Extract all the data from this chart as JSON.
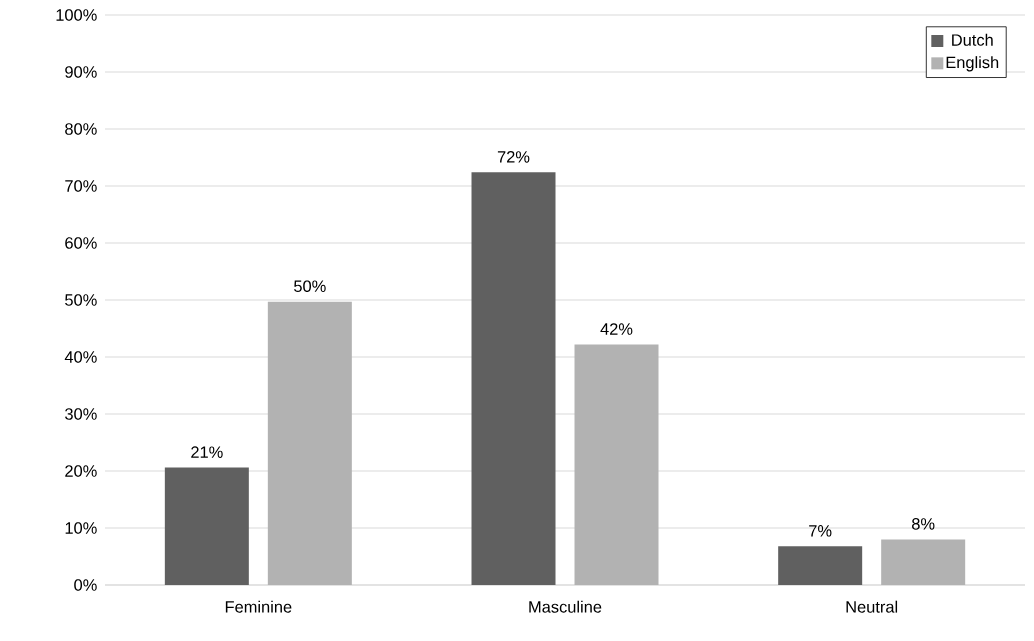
{
  "chart_data": {
    "type": "bar",
    "categories": [
      "Feminine",
      "Masculine",
      "Neutral"
    ],
    "series": [
      {
        "name": "Dutch",
        "color": "#606060",
        "values": [
          20.6,
          72.4,
          6.8
        ],
        "value_labels": [
          "21%",
          "72%",
          "7%"
        ]
      },
      {
        "name": "English",
        "color": "#b2b2b2",
        "values": [
          49.7,
          42.2,
          8.0
        ],
        "value_labels": [
          "50%",
          "42%",
          "8%"
        ]
      }
    ],
    "ylim": [
      0,
      100
    ],
    "yticks": [
      {
        "value": 0,
        "label": "0%"
      },
      {
        "value": 10,
        "label": "10%"
      },
      {
        "value": 20,
        "label": "20%"
      },
      {
        "value": 30,
        "label": "30%"
      },
      {
        "value": 40,
        "label": "40%"
      },
      {
        "value": 50,
        "label": "50%"
      },
      {
        "value": 60,
        "label": "60%"
      },
      {
        "value": 70,
        "label": "70%"
      },
      {
        "value": 80,
        "label": "80%"
      },
      {
        "value": 90,
        "label": "90%"
      },
      {
        "value": 100,
        "label": "100%"
      }
    ],
    "grid": "y",
    "legend": "top right"
  }
}
